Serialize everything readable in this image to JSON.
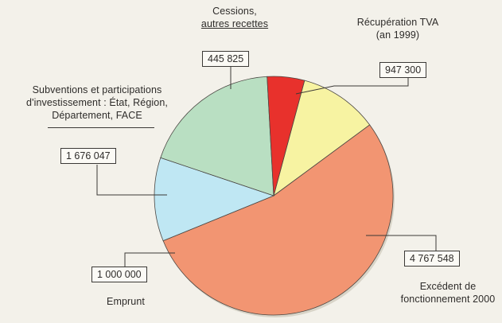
{
  "chart_data": {
    "type": "pie",
    "unit": "",
    "slices": [
      {
        "key": "tva",
        "label_lines": [
          "Récupération TVA",
          "(an 1999)"
        ],
        "value": 947300,
        "value_label": "947 300",
        "color": "#f7f3a2"
      },
      {
        "key": "excedent",
        "label_lines": [
          "Excédent de",
          "fonctionnement 2000"
        ],
        "value": 4767548,
        "value_label": "4 767 548",
        "color": "#f29572"
      },
      {
        "key": "emprunt",
        "label_lines": [
          "Emprunt"
        ],
        "value": 1000000,
        "value_label": "1 000 000",
        "color": "#bfe7f3"
      },
      {
        "key": "subventions",
        "label_lines": [
          "Subventions et participations",
          "d'investissement : État, Région,",
          "Département, FACE"
        ],
        "value": 1676047,
        "value_label": "1 676 047",
        "color": "#b9dfc2"
      },
      {
        "key": "cessions",
        "label_lines": [
          "Cessions,",
          "autres recettes"
        ],
        "value": 445825,
        "value_label": "445 825",
        "color": "#e8312c"
      }
    ]
  }
}
